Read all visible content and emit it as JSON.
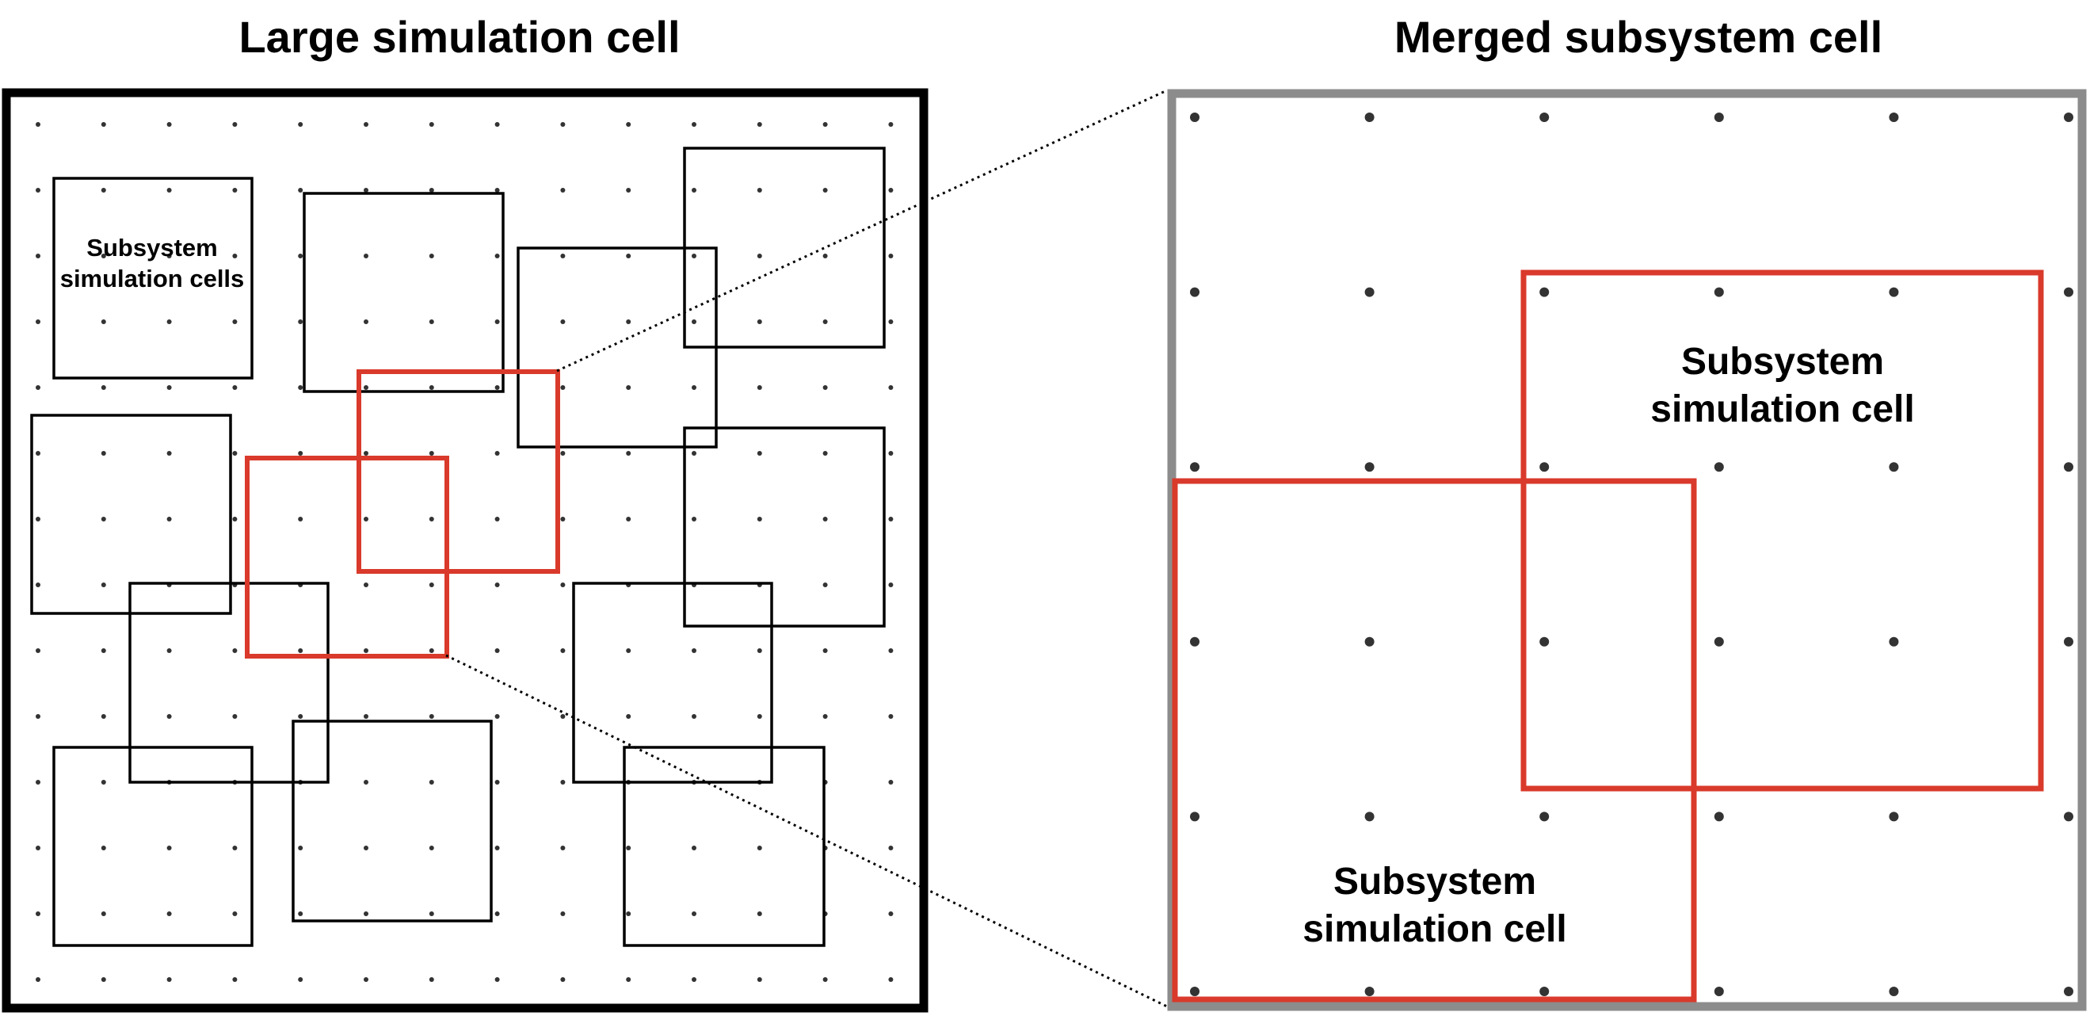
{
  "titles": {
    "left": "Large simulation cell",
    "right": "Merged subsystem cell"
  },
  "left_panel": {
    "label_line1": "Subsystem",
    "label_line2": "simulation cells"
  },
  "right_panel": {
    "label_upper_line1": "Subsystem",
    "label_upper_line2": "simulation cell",
    "label_lower_line1": "Subsystem",
    "label_lower_line2": "simulation cell"
  },
  "colors": {
    "large_cell_border": "#000000",
    "subsystem_cell": "#000000",
    "highlighted_subsystem_cell": "#d93a2b",
    "merged_cell_border": "#8c8c8c",
    "lattice_point": "#333333",
    "connector_line": "#000000"
  }
}
